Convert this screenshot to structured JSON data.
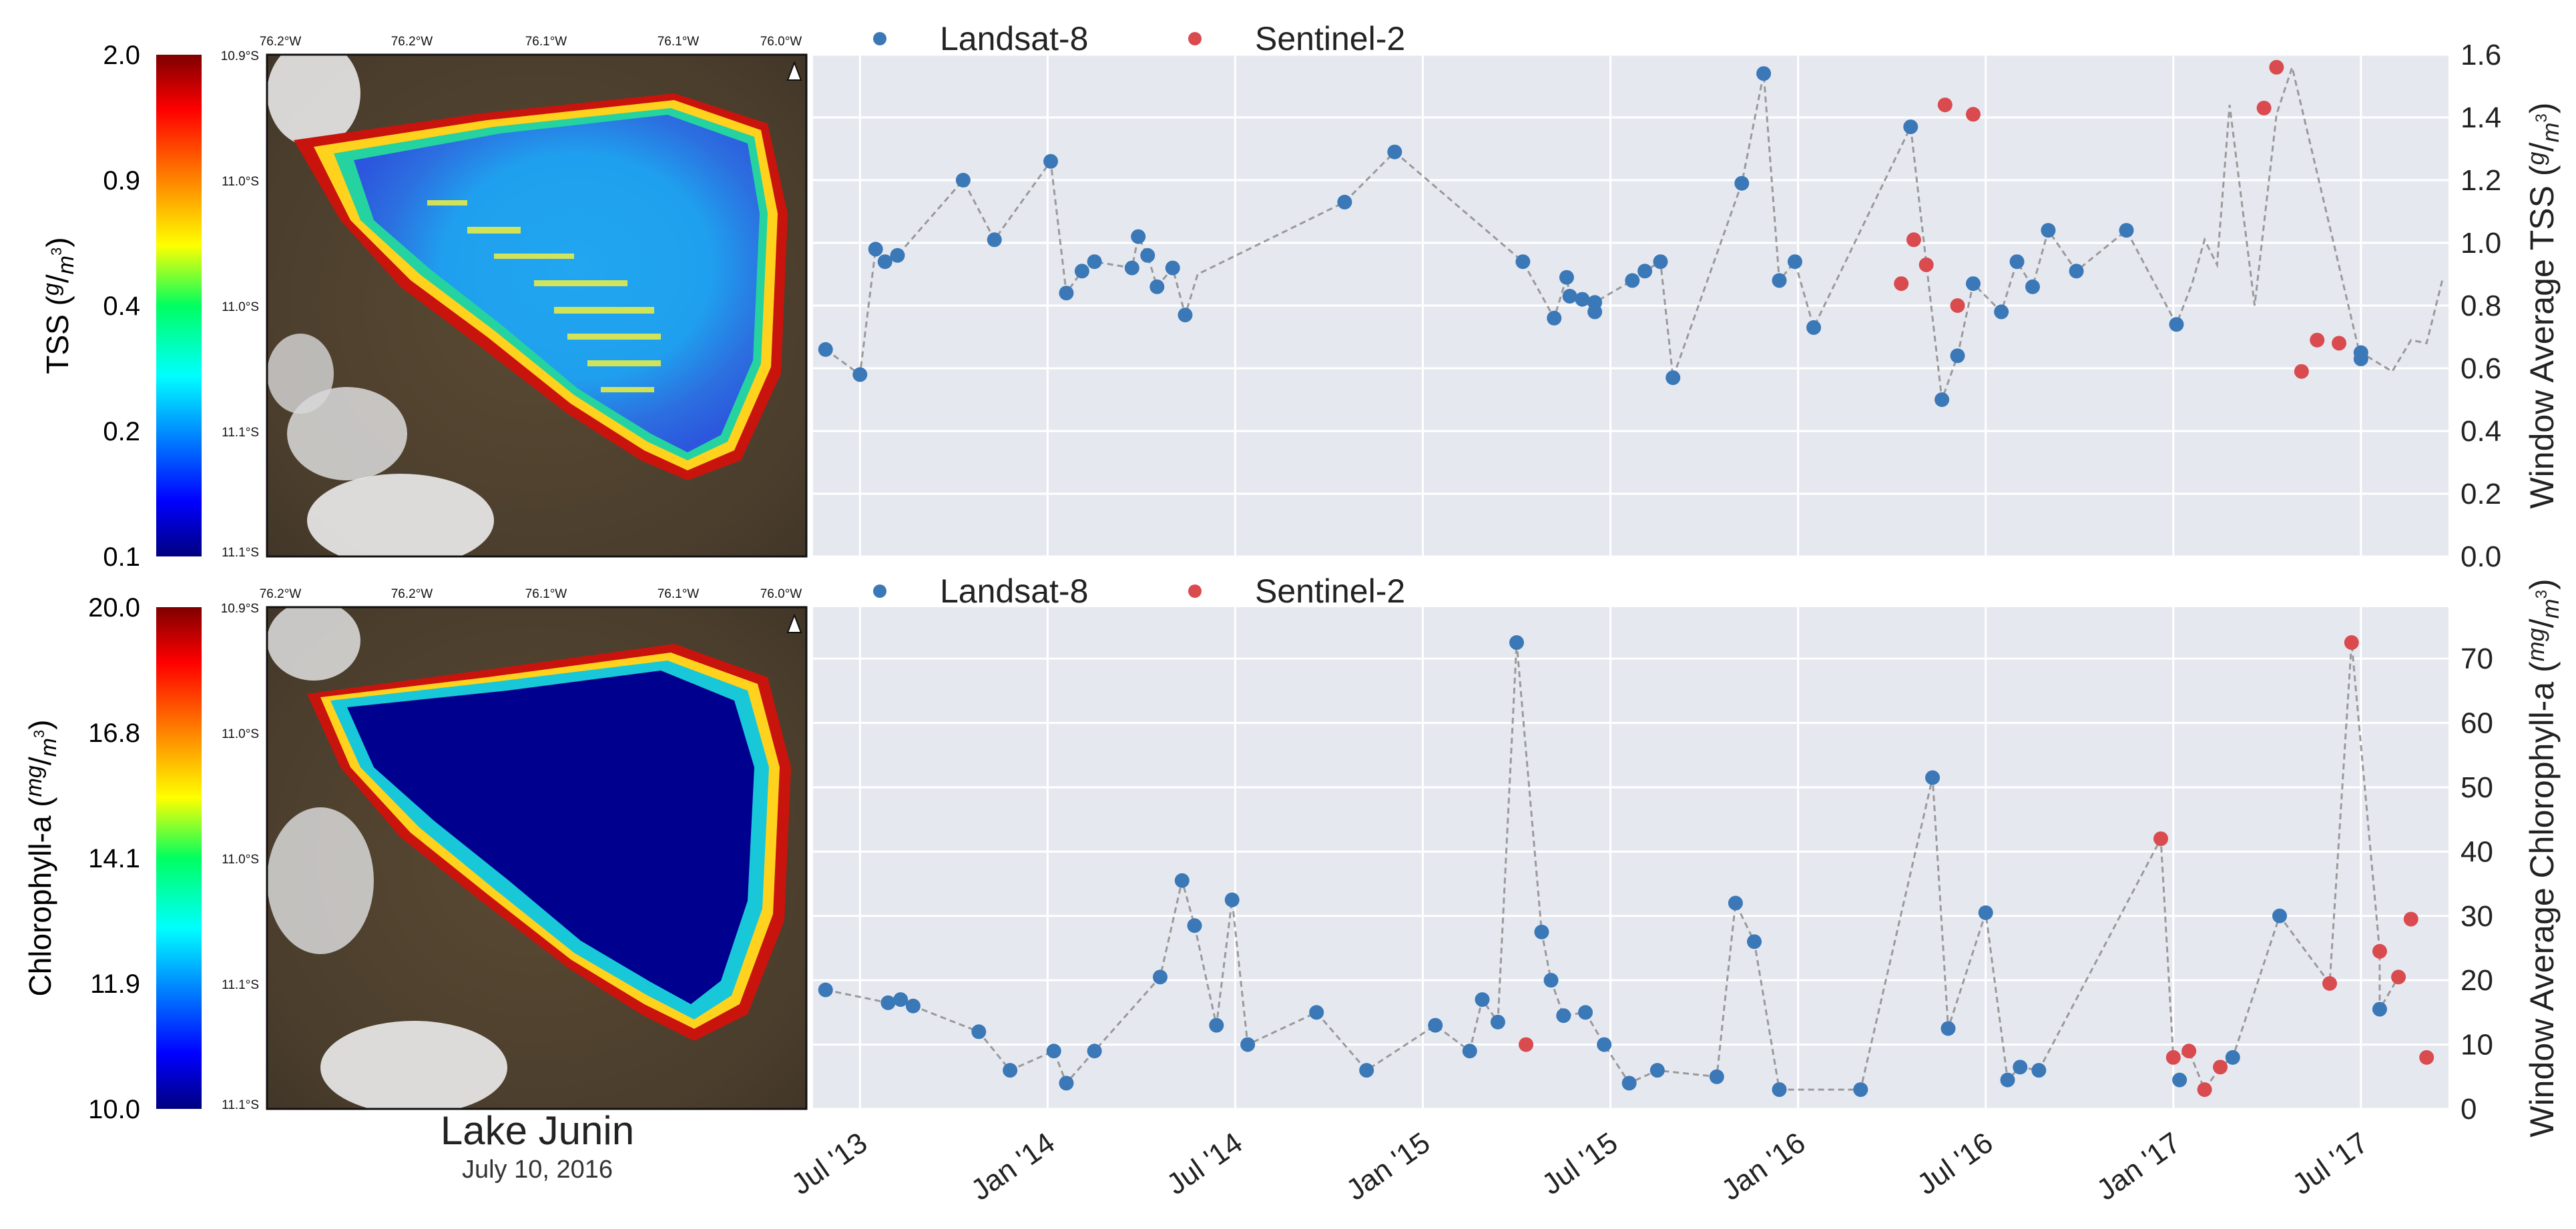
{
  "figure": {
    "lake_name": "Lake Junin",
    "date": "July 10, 2016",
    "map_lon_labels": [
      "76.2°W",
      "76.2°W",
      "76.1°W",
      "76.1°W",
      "76.0°W"
    ],
    "map_lat_labels": [
      "10.9°S",
      "11.0°S",
      "11.0°S",
      "11.1°S",
      "11.1°S"
    ]
  },
  "colorbars": [
    {
      "id": "tss",
      "label": "TSS",
      "unit_num": "g",
      "unit_den": "m",
      "ticks": [
        "2.0",
        "0.9",
        "0.4",
        "0.2",
        "0.1"
      ]
    },
    {
      "id": "chl",
      "label": "Chlorophyll-a",
      "unit_num": "mg",
      "unit_den": "m",
      "ticks": [
        "20.0",
        "16.8",
        "14.1",
        "11.9",
        "10.0"
      ]
    }
  ],
  "colors": {
    "landsat": "#3a78b7",
    "sentinel": "#d94b4f",
    "plot_bg": "#e6e8f0",
    "grid": "#ffffff",
    "line": "#9a9a9a"
  },
  "chart_data": [
    {
      "type": "scatter",
      "id": "tss_chart",
      "ylabel": "Window Average TSS",
      "unit_num": "g",
      "unit_den": "m",
      "ylim": [
        0,
        1.6
      ],
      "yticks": [
        0.0,
        0.2,
        0.4,
        0.6,
        0.8,
        1.0,
        1.2,
        1.4,
        1.6
      ],
      "ytick_labels": [
        "0.0",
        "0.2",
        "0.4",
        "0.6",
        "0.8",
        "1.0",
        "1.2",
        "1.4",
        "1.6"
      ],
      "legend": [
        "Landsat-8",
        "Sentinel-2"
      ],
      "x_unit": "months since Jan 2013",
      "xlim": [
        4.5,
        56.8
      ],
      "xticks": [
        6,
        12,
        18,
        24,
        30,
        36,
        42,
        48,
        54
      ],
      "xtick_labels": [
        "Jul '13",
        "Jan '14",
        "Jul '14",
        "Jan '15",
        "Jul '15",
        "Jan '16",
        "Jul '16",
        "Jan '17",
        "Jul '17"
      ],
      "series": [
        {
          "name": "Landsat-8",
          "x": [
            4.9,
            6.0,
            6.5,
            6.8,
            7.2,
            9.3,
            10.3,
            12.1,
            12.6,
            13.1,
            13.5,
            14.7,
            14.9,
            15.2,
            15.5,
            16.0,
            16.4,
            21.5,
            23.1,
            27.2,
            28.2,
            28.6,
            28.7,
            29.1,
            29.5,
            29.5,
            30.7,
            31.1,
            31.6,
            32.0,
            34.2,
            34.9,
            35.4,
            35.9,
            36.5,
            39.6,
            40.6,
            41.1,
            41.6,
            42.5,
            43.0,
            43.5,
            44.0,
            44.9,
            46.5,
            48.1,
            54.0,
            54.0
          ],
          "y": [
            0.66,
            0.58,
            0.98,
            0.94,
            0.96,
            1.2,
            1.01,
            1.26,
            0.84,
            0.91,
            0.94,
            0.92,
            1.02,
            0.96,
            0.86,
            0.92,
            0.77,
            1.13,
            1.29,
            0.94,
            0.76,
            0.89,
            0.83,
            0.82,
            0.78,
            0.81,
            0.88,
            0.91,
            0.94,
            0.57,
            1.19,
            1.54,
            0.88,
            0.94,
            0.73,
            1.37,
            0.5,
            0.64,
            0.87,
            0.78,
            0.94,
            0.86,
            1.04,
            0.91,
            1.04,
            0.74,
            0.63,
            0.65
          ]
        },
        {
          "name": "Sentinel-2",
          "x": [
            39.3,
            39.7,
            40.1,
            40.7,
            41.1,
            41.6,
            50.9,
            51.3,
            52.1,
            52.6,
            53.3
          ],
          "y": [
            0.87,
            1.01,
            0.93,
            1.44,
            0.8,
            1.41,
            1.43,
            1.56,
            0.59,
            0.69,
            0.68
          ]
        }
      ],
      "dashed_line_order": [
        [
          4.9,
          0.66
        ],
        [
          6.0,
          0.58
        ],
        [
          6.5,
          0.98
        ],
        [
          6.8,
          0.94
        ],
        [
          7.2,
          0.96
        ],
        [
          9.3,
          1.2
        ],
        [
          10.3,
          1.01
        ],
        [
          12.1,
          1.26
        ],
        [
          12.6,
          0.84
        ],
        [
          13.1,
          0.91
        ],
        [
          13.5,
          0.94
        ],
        [
          14.7,
          0.92
        ],
        [
          14.9,
          1.02
        ],
        [
          15.2,
          0.96
        ],
        [
          15.5,
          0.86
        ],
        [
          16.0,
          0.92
        ],
        [
          16.4,
          0.77
        ],
        [
          16.8,
          0.9
        ],
        [
          21.5,
          1.13
        ],
        [
          23.1,
          1.29
        ],
        [
          27.2,
          0.94
        ],
        [
          28.2,
          0.76
        ],
        [
          28.6,
          0.89
        ],
        [
          28.7,
          0.83
        ],
        [
          29.1,
          0.82
        ],
        [
          29.5,
          0.78
        ],
        [
          29.5,
          0.81
        ],
        [
          30.7,
          0.88
        ],
        [
          31.1,
          0.91
        ],
        [
          31.6,
          0.94
        ],
        [
          32.0,
          0.57
        ],
        [
          34.2,
          1.19
        ],
        [
          34.9,
          1.54
        ],
        [
          35.4,
          0.88
        ],
        [
          35.9,
          0.94
        ],
        [
          36.5,
          0.73
        ],
        [
          39.6,
          1.37
        ],
        [
          40.6,
          0.5
        ],
        [
          41.1,
          0.64
        ],
        [
          41.6,
          0.87
        ],
        [
          42.5,
          0.78
        ],
        [
          43.0,
          0.94
        ],
        [
          43.5,
          0.86
        ],
        [
          44.0,
          1.04
        ],
        [
          44.9,
          0.91
        ],
        [
          46.5,
          1.04
        ],
        [
          48.1,
          0.74
        ],
        [
          48.6,
          0.87
        ],
        [
          49.0,
          1.01
        ],
        [
          49.4,
          0.93
        ],
        [
          49.8,
          1.44
        ],
        [
          50.6,
          0.8
        ],
        [
          51.3,
          1.41
        ],
        [
          51.8,
          1.56
        ],
        [
          54.0,
          0.63
        ],
        [
          54.0,
          0.65
        ],
        [
          55.0,
          0.59
        ],
        [
          55.6,
          0.69
        ],
        [
          56.1,
          0.68
        ],
        [
          56.6,
          0.88
        ]
      ]
    },
    {
      "type": "scatter",
      "id": "chl_chart",
      "ylabel": "Window Average Chlorophyll-a",
      "unit_num": "mg",
      "unit_den": "m",
      "ylim": [
        0,
        78
      ],
      "yticks": [
        0,
        10,
        20,
        30,
        40,
        50,
        60,
        70
      ],
      "ytick_labels": [
        "0",
        "10",
        "20",
        "30",
        "40",
        "50",
        "60",
        "70"
      ],
      "legend": [
        "Landsat-8",
        "Sentinel-2"
      ],
      "x_unit": "months since Jan 2013",
      "xlim": [
        4.5,
        56.8
      ],
      "xticks": [
        6,
        12,
        18,
        24,
        30,
        36,
        42,
        48,
        54
      ],
      "xtick_labels": [
        "Jul '13",
        "Jan '14",
        "Jul '14",
        "Jan '15",
        "Jul '15",
        "Jan '16",
        "Jul '16",
        "Jan '17",
        "Jul '17"
      ],
      "series": [
        {
          "name": "Landsat-8",
          "x": [
            4.9,
            6.9,
            7.3,
            7.7,
            9.8,
            10.8,
            12.2,
            12.6,
            13.5,
            15.6,
            16.3,
            16.7,
            17.4,
            17.9,
            18.4,
            20.6,
            22.2,
            24.4,
            25.5,
            25.9,
            26.4,
            27.0,
            27.8,
            28.1,
            28.5,
            29.2,
            29.8,
            30.6,
            31.5,
            33.4,
            34.0,
            34.6,
            35.4,
            38.0,
            40.3,
            40.8,
            42.0,
            42.7,
            43.1,
            43.7,
            48.2,
            49.9,
            51.4,
            54.6
          ],
          "y": [
            18.5,
            16.5,
            17.0,
            16.0,
            12.0,
            6.0,
            9.0,
            4.0,
            9.0,
            20.5,
            35.5,
            28.5,
            13.0,
            32.5,
            10.0,
            15.0,
            6.0,
            13.0,
            9.0,
            17.0,
            13.5,
            72.5,
            27.5,
            20.0,
            14.5,
            15.0,
            10.0,
            4.0,
            6.0,
            5.0,
            32.0,
            26.0,
            3.0,
            3.0,
            51.5,
            12.5,
            30.5,
            4.5,
            6.5,
            6.0,
            4.5,
            8.0,
            30.0,
            15.5
          ]
        },
        {
          "name": "Sentinel-2",
          "x": [
            27.3,
            47.6,
            48.0,
            48.5,
            49.0,
            49.5,
            53.0,
            53.7,
            54.6,
            55.2,
            55.6,
            56.1
          ],
          "y": [
            10.0,
            42.0,
            8.0,
            9.0,
            3.0,
            6.5,
            19.5,
            72.5,
            24.5,
            20.5,
            29.5,
            8.0
          ]
        }
      ],
      "dashed_line_order": [
        [
          4.9,
          18.5
        ],
        [
          6.9,
          16.5
        ],
        [
          7.3,
          17.0
        ],
        [
          7.7,
          16.0
        ],
        [
          9.8,
          12.0
        ],
        [
          10.8,
          6.0
        ],
        [
          12.2,
          9.0
        ],
        [
          12.6,
          4.0
        ],
        [
          13.5,
          9.0
        ],
        [
          15.6,
          20.5
        ],
        [
          16.3,
          35.5
        ],
        [
          16.7,
          28.5
        ],
        [
          17.4,
          13.0
        ],
        [
          17.9,
          32.5
        ],
        [
          18.4,
          10.0
        ],
        [
          20.6,
          15.0
        ],
        [
          22.2,
          6.0
        ],
        [
          24.4,
          13.0
        ],
        [
          25.5,
          9.0
        ],
        [
          25.9,
          17.0
        ],
        [
          26.4,
          13.5
        ],
        [
          27.0,
          72.5
        ],
        [
          27.8,
          27.5
        ],
        [
          28.1,
          20.0
        ],
        [
          28.5,
          14.5
        ],
        [
          29.2,
          15.0
        ],
        [
          29.8,
          10.0
        ],
        [
          30.6,
          4.0
        ],
        [
          31.5,
          6.0
        ],
        [
          33.4,
          5.0
        ],
        [
          34.0,
          32.0
        ],
        [
          34.6,
          26.0
        ],
        [
          35.4,
          3.0
        ],
        [
          38.0,
          3.0
        ],
        [
          40.3,
          51.5
        ],
        [
          40.8,
          12.5
        ],
        [
          42.0,
          30.5
        ],
        [
          42.7,
          4.5
        ],
        [
          43.1,
          6.5
        ],
        [
          43.7,
          6.0
        ],
        [
          47.6,
          42.0
        ],
        [
          48.0,
          8.0
        ],
        [
          48.5,
          9.0
        ],
        [
          49.0,
          3.0
        ],
        [
          49.5,
          6.5
        ],
        [
          49.9,
          8.0
        ],
        [
          51.4,
          30.0
        ],
        [
          53.0,
          19.5
        ],
        [
          53.7,
          72.5
        ],
        [
          54.6,
          24.5
        ],
        [
          54.6,
          15.5
        ],
        [
          55.2,
          20.5
        ]
      ]
    }
  ]
}
